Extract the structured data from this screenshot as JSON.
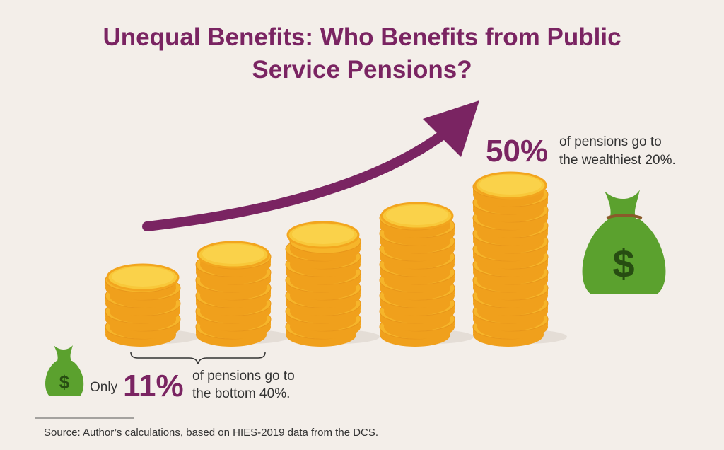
{
  "title": {
    "line1": "Unequal Benefits: Who Benefits from Public",
    "line2": "Service Pensions?"
  },
  "top_callout": {
    "figure": "50%",
    "line1": "of pensions go to",
    "line2": "the wealthiest 20%."
  },
  "bottom_callout": {
    "prefix": "Only",
    "figure": "11%",
    "line1": "of pensions go to",
    "line2": "the bottom 40%."
  },
  "source": "Source: Author’s calculations, based on HIES-2019 data from the DCS."
}
